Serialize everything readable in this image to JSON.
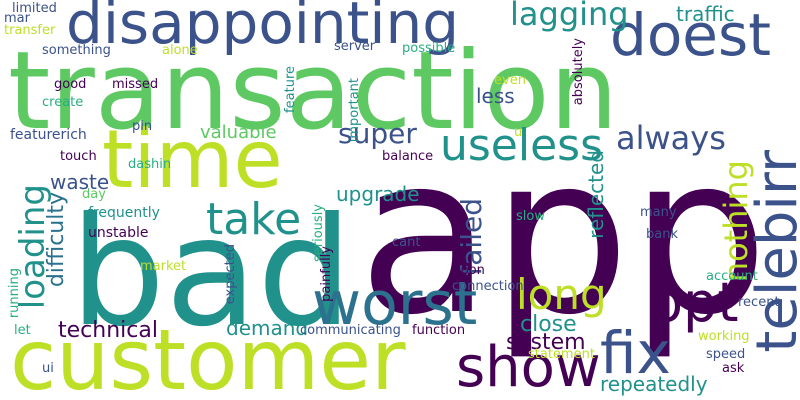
{
  "palette": {
    "purple": "#440154",
    "indigo": "#3b528b",
    "teal": "#21918c",
    "green": "#5ec962",
    "lime": "#bddf26",
    "lightgreen": "#7ad151",
    "blue": "#2c728e",
    "seagreen": "#28ae80"
  },
  "words": [
    {
      "text": "app",
      "color": "purple"
    },
    {
      "text": "transaction",
      "color": "green"
    },
    {
      "text": "bad",
      "color": "teal"
    },
    {
      "text": "customer",
      "color": "lime"
    },
    {
      "text": "disappointing",
      "color": "indigo"
    },
    {
      "text": "time",
      "color": "lime"
    },
    {
      "text": "doest",
      "color": "indigo"
    },
    {
      "text": "telebirr",
      "color": "indigo"
    },
    {
      "text": "worst",
      "color": "blue"
    },
    {
      "text": "show",
      "color": "purple"
    },
    {
      "text": "fix",
      "color": "indigo"
    },
    {
      "text": "opt",
      "color": "purple"
    },
    {
      "text": "useless",
      "color": "teal"
    },
    {
      "text": "take",
      "color": "teal"
    },
    {
      "text": "long",
      "color": "lime"
    },
    {
      "text": "always",
      "color": "indigo"
    },
    {
      "text": "loading",
      "color": "teal"
    },
    {
      "text": "lagging",
      "color": "teal"
    },
    {
      "text": "super",
      "color": "indigo"
    },
    {
      "text": "nothing",
      "color": "lime"
    },
    {
      "text": "failed",
      "color": "indigo"
    },
    {
      "text": "upgrade",
      "color": "teal"
    },
    {
      "text": "valuable",
      "color": "green"
    },
    {
      "text": "close",
      "color": "teal"
    },
    {
      "text": "technical",
      "color": "purple"
    },
    {
      "text": "demand",
      "color": "teal"
    },
    {
      "text": "system",
      "color": "purple"
    },
    {
      "text": "repeatedly",
      "color": "teal"
    },
    {
      "text": "traffic",
      "color": "teal"
    },
    {
      "text": "less",
      "color": "indigo"
    },
    {
      "text": "waste",
      "color": "indigo"
    },
    {
      "text": "difficulty",
      "color": "blue"
    },
    {
      "text": "reflected",
      "color": "teal"
    },
    {
      "text": "frequently",
      "color": "teal"
    },
    {
      "text": "unstable",
      "color": "purple"
    },
    {
      "text": "featurerich",
      "color": "indigo"
    },
    {
      "text": "touch",
      "color": "purple"
    },
    {
      "text": "dashin",
      "color": "seagreen"
    },
    {
      "text": "pin",
      "color": "indigo"
    },
    {
      "text": "limited",
      "color": "indigo"
    },
    {
      "text": "mar",
      "color": "indigo"
    },
    {
      "text": "transfer",
      "color": "lime"
    },
    {
      "text": "something",
      "color": "indigo"
    },
    {
      "text": "alone",
      "color": "lime"
    },
    {
      "text": "server",
      "color": "indigo"
    },
    {
      "text": "possible",
      "color": "seagreen"
    },
    {
      "text": "absolutely",
      "color": "purple"
    },
    {
      "text": "good",
      "color": "purple"
    },
    {
      "text": "missed",
      "color": "purple"
    },
    {
      "text": "create",
      "color": "seagreen"
    },
    {
      "text": "feature",
      "color": "teal"
    },
    {
      "text": "important",
      "color": "teal"
    },
    {
      "text": "even",
      "color": "lime"
    },
    {
      "text": "u",
      "color": "lime"
    },
    {
      "text": "balance",
      "color": "purple"
    },
    {
      "text": "day",
      "color": "green"
    },
    {
      "text": "slow",
      "color": "seagreen"
    },
    {
      "text": "many",
      "color": "indigo"
    },
    {
      "text": "bank",
      "color": "indigo"
    },
    {
      "text": "cant",
      "color": "indigo"
    },
    {
      "text": "seriously",
      "color": "seagreen"
    },
    {
      "text": "market",
      "color": "lime"
    },
    {
      "text": "expected",
      "color": "indigo"
    },
    {
      "text": "painfully",
      "color": "purple"
    },
    {
      "text": "soon",
      "color": "purple"
    },
    {
      "text": "account",
      "color": "seagreen"
    },
    {
      "text": "recent",
      "color": "indigo"
    },
    {
      "text": "running",
      "color": "seagreen"
    },
    {
      "text": "let",
      "color": "seagreen"
    },
    {
      "text": "connection",
      "color": "indigo"
    },
    {
      "text": "function",
      "color": "purple"
    },
    {
      "text": "communicating",
      "color": "indigo"
    },
    {
      "text": "working",
      "color": "lime"
    },
    {
      "text": "statement",
      "color": "lime"
    },
    {
      "text": "speed",
      "color": "indigo"
    },
    {
      "text": "ask",
      "color": "purple"
    },
    {
      "text": "ui",
      "color": "indigo"
    }
  ]
}
